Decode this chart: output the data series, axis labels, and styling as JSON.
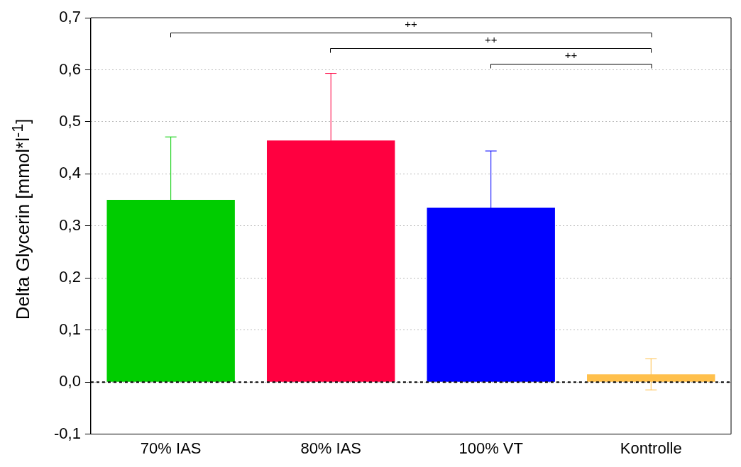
{
  "chart_data": {
    "type": "bar",
    "ylabel": "Delta Glycerin [mmol*l$^{-1}$]",
    "categories": [
      "70% IAS",
      "80% IAS",
      "100% VT",
      "Kontrolle"
    ],
    "values": [
      0.35,
      0.464,
      0.335,
      0.015
    ],
    "colors": [
      "#00cc00",
      "#ff0040",
      "#0000ff",
      "#ffc04c"
    ],
    "errors": [
      [
        0.35,
        0.471
      ],
      [
        0.464,
        0.593
      ],
      [
        0.335,
        0.444
      ],
      [
        -0.015,
        0.045
      ]
    ],
    "ylim": [
      -0.1,
      0.7
    ],
    "yticks": [
      {
        "value": -0.1,
        "label": "-0,1"
      },
      {
        "value": 0,
        "label": "0,0"
      },
      {
        "value": 0.1,
        "label": "0,1"
      },
      {
        "value": 0.2,
        "label": "0,2"
      },
      {
        "value": 0.3,
        "label": "0,3"
      },
      {
        "value": 0.4,
        "label": "0,4"
      },
      {
        "value": 0.5,
        "label": "0,5"
      },
      {
        "value": 0.6,
        "label": "0,6"
      },
      {
        "value": 0.7,
        "label": "0,7"
      }
    ],
    "grid": "y",
    "legend": false,
    "ref_lines": [
      {
        "axis": "y",
        "value": 0,
        "line_style": "dashed",
        "color": "#000000"
      }
    ],
    "annotations": [
      "++",
      "++",
      "++"
    ]
  }
}
